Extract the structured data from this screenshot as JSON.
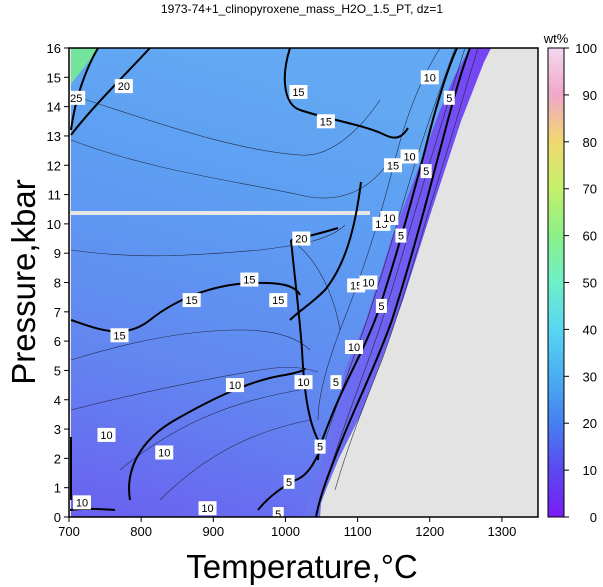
{
  "chart_data": {
    "type": "heatmap",
    "title": "1973-74+1_clinopyroxene_mass_H2O_1.5_PT, dz=1",
    "xlabel": "Temperature,°C",
    "ylabel": "Pressure,kbar",
    "xlim": [
      700,
      1350
    ],
    "ylim": [
      0,
      16
    ],
    "x_ticks": [
      700,
      800,
      900,
      1000,
      1100,
      1200,
      1300
    ],
    "y_ticks": [
      0,
      1,
      2,
      3,
      4,
      5,
      6,
      7,
      8,
      9,
      10,
      11,
      12,
      13,
      14,
      15,
      16
    ],
    "colorbar": {
      "label": "wt%",
      "range": [
        0,
        100
      ],
      "ticks": [
        0,
        10,
        20,
        30,
        40,
        50,
        60,
        70,
        80,
        90,
        100
      ],
      "colors": [
        "#7a1cf5",
        "#5b49f0",
        "#4680f0",
        "#4aaef2",
        "#58d6f2",
        "#6ef0c8",
        "#8af08a",
        "#c4f06a",
        "#f0d86e",
        "#f0a8c8",
        "#f4d8f0"
      ]
    },
    "no_data_color": "#e3e3e3",
    "contour_labels": [
      {
        "text": "25",
        "x": 710,
        "y": 14.3
      },
      {
        "text": "20",
        "x": 776,
        "y": 14.7
      },
      {
        "text": "15",
        "x": 1018,
        "y": 14.5
      },
      {
        "text": "15",
        "x": 1056,
        "y": 13.5
      },
      {
        "text": "10",
        "x": 1200,
        "y": 15.0
      },
      {
        "text": "5",
        "x": 1227,
        "y": 14.3
      },
      {
        "text": "15",
        "x": 1149,
        "y": 12.0
      },
      {
        "text": "10",
        "x": 1172,
        "y": 12.3
      },
      {
        "text": "5",
        "x": 1195,
        "y": 11.8
      },
      {
        "text": "20",
        "x": 1022,
        "y": 9.5
      },
      {
        "text": "15",
        "x": 1133,
        "y": 10.0
      },
      {
        "text": "10",
        "x": 1144,
        "y": 10.2
      },
      {
        "text": "5",
        "x": 1160,
        "y": 9.6
      },
      {
        "text": "15",
        "x": 950,
        "y": 8.1
      },
      {
        "text": "15",
        "x": 870,
        "y": 7.4
      },
      {
        "text": "15",
        "x": 990,
        "y": 7.4
      },
      {
        "text": "15",
        "x": 1098,
        "y": 7.9
      },
      {
        "text": "10",
        "x": 1115,
        "y": 8.0
      },
      {
        "text": "5",
        "x": 1133,
        "y": 7.2
      },
      {
        "text": "15",
        "x": 770,
        "y": 6.2
      },
      {
        "text": "10",
        "x": 1095,
        "y": 5.8
      },
      {
        "text": "10",
        "x": 1025,
        "y": 4.6
      },
      {
        "text": "5",
        "x": 1070,
        "y": 4.6
      },
      {
        "text": "10",
        "x": 930,
        "y": 4.5
      },
      {
        "text": "10",
        "x": 752,
        "y": 2.8
      },
      {
        "text": "5",
        "x": 1048,
        "y": 2.4
      },
      {
        "text": "10",
        "x": 832,
        "y": 2.2
      },
      {
        "text": "5",
        "x": 1005,
        "y": 1.2
      },
      {
        "text": "10",
        "x": 718,
        "y": 0.5
      },
      {
        "text": "10",
        "x": 892,
        "y": 0.3
      },
      {
        "text": "5",
        "x": 990,
        "y": 0.1
      }
    ]
  }
}
